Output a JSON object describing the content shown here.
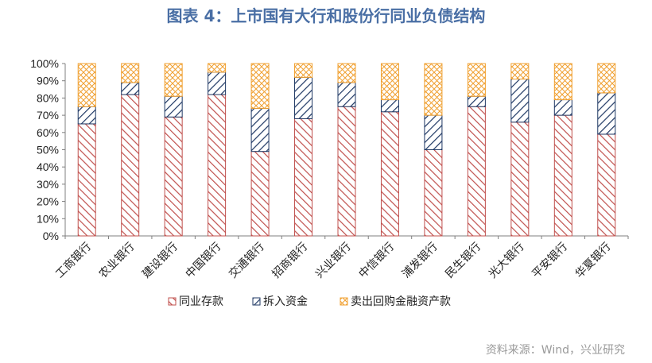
{
  "title": "图表 4：上市国有大行和股份行同业负债结构",
  "source": "资料来源：Wind，兴业研究",
  "colors": {
    "title": "#4a6fa5",
    "series1": "#c0504d",
    "series2": "#1f3864",
    "series3": "#f0a030"
  },
  "chart_data": {
    "type": "bar",
    "stacked": true,
    "title": "",
    "xlabel": "",
    "ylabel": "",
    "ylim": [
      0,
      100
    ],
    "y_ticks": [
      "0%",
      "10%",
      "20%",
      "30%",
      "40%",
      "50%",
      "60%",
      "70%",
      "80%",
      "90%",
      "100%"
    ],
    "grid": false,
    "legend_position": "bottom",
    "categories": [
      "工商银行",
      "农业银行",
      "建设银行",
      "中国银行",
      "交通银行",
      "招商银行",
      "兴业银行",
      "中信银行",
      "浦发银行",
      "民生银行",
      "光大银行",
      "平安银行",
      "华夏银行"
    ],
    "series": [
      {
        "name": "同业存款",
        "pattern": "diagonal-red",
        "values": [
          65,
          82,
          69,
          82,
          49,
          68,
          75,
          72,
          50,
          75,
          66,
          70,
          59
        ]
      },
      {
        "name": "拆入资金",
        "pattern": "diagonal-navy",
        "values": [
          10,
          7,
          12,
          13,
          25,
          24,
          14,
          7,
          20,
          6,
          25,
          9,
          24
        ]
      },
      {
        "name": "卖出回购金融资产款",
        "pattern": "crosshatch-orange",
        "values": [
          25,
          11,
          19,
          5,
          26,
          8,
          11,
          21,
          30,
          19,
          9,
          21,
          17
        ]
      }
    ]
  }
}
